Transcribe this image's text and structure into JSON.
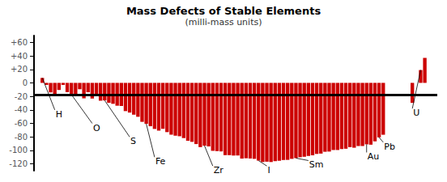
{
  "chart_data": {
    "type": "bar",
    "title": "Mass Defects of Stable Elements",
    "subtitle": "(milli-mass units)",
    "color": "#cc0000",
    "x": [
      1,
      2,
      3,
      4,
      5,
      6,
      7,
      8,
      9,
      10,
      11,
      12,
      13,
      14,
      15,
      16,
      17,
      18,
      19,
      20,
      21,
      22,
      23,
      24,
      25,
      26,
      27,
      28,
      29,
      30,
      31,
      32,
      33,
      34,
      35,
      36,
      37,
      38,
      39,
      40,
      41,
      42,
      43,
      44,
      45,
      46,
      47,
      48,
      49,
      50,
      51,
      52,
      53,
      54,
      55,
      56,
      57,
      58,
      59,
      60,
      61,
      62,
      63,
      64,
      65,
      66,
      67,
      68,
      69,
      70,
      71,
      72,
      73,
      74,
      75,
      76,
      77,
      78,
      79,
      80,
      81,
      82,
      83,
      90,
      92,
      93
    ],
    "values": [
      7.3,
      -3.0,
      -14.1,
      -19.0,
      -10.5,
      -3.0,
      -13.7,
      -17.4,
      -17.4,
      -9.4,
      -22.9,
      -13.9,
      -23.2,
      -19.1,
      -26.4,
      -26.0,
      -29.5,
      -31.0,
      -33.8,
      -34.2,
      -41.8,
      -44.0,
      -47.1,
      -50.2,
      -57.7,
      -60.6,
      -64.2,
      -68.2,
      -70.7,
      -68.0,
      -72.9,
      -76.7,
      -78.2,
      -79.0,
      -81.7,
      -85.7,
      -87.3,
      -90.6,
      -95.1,
      -93.0,
      -94.0,
      -100.6,
      -101.0,
      -101.5,
      -107.0,
      -107.0,
      -107.6,
      -107.5,
      -112.1,
      -111.6,
      -112.0,
      -112.5,
      -115.1,
      -117.2,
      -116.7,
      -117.2,
      -115.9,
      -115.3,
      -114.2,
      -114.0,
      -112.5,
      -111.4,
      -110.1,
      -109.4,
      -108.2,
      -107.2,
      -105.2,
      -104.7,
      -102.0,
      -101.7,
      -99.4,
      -99.4,
      -98.0,
      -97.5,
      -95.1,
      -96.0,
      -93.5,
      -93.5,
      -91.0,
      -91.5,
      -86.6,
      -80.7,
      -76.8,
      -29.6,
      19.0,
      37.0
    ],
    "xlim": [
      -1,
      96
    ],
    "ylim": [
      -130,
      70
    ],
    "yticks": [
      -120,
      -100,
      -80,
      -60,
      -40,
      -20,
      0,
      {
        "value": 20,
        "label": "+20"
      },
      {
        "value": 40,
        "label": "+40"
      },
      {
        "value": 60,
        "label": "+60"
      }
    ],
    "tick_labels": "y",
    "grid": false,
    "hline_y": -18,
    "annotations": [
      {
        "label": "H",
        "x": 1,
        "y": 7.3,
        "label_x": 4,
        "label_y": -40
      },
      {
        "label": "O",
        "x": 8,
        "y": -17.4,
        "label_x": 13,
        "label_y": -60
      },
      {
        "label": "S",
        "x": 16,
        "y": -26.0,
        "label_x": 22,
        "label_y": -80
      },
      {
        "label": "Fe",
        "x": 26,
        "y": -60.6,
        "label_x": 28,
        "label_y": -110
      },
      {
        "label": "Zr",
        "x": 40,
        "y": -93.0,
        "label_x": 42,
        "label_y": -123
      },
      {
        "label": "I",
        "x": 53,
        "y": -115.1,
        "label_x": 55,
        "label_y": -123
      },
      {
        "label": "Sm",
        "x": 62,
        "y": -111.4,
        "label_x": 65,
        "label_y": -115
      },
      {
        "label": "Au",
        "x": 79,
        "y": -91.0,
        "label_x": 79,
        "label_y": -103
      },
      {
        "label": "Pb",
        "x": 82,
        "y": -80.7,
        "label_x": 83,
        "label_y": -88
      },
      {
        "label": "U",
        "x": 92,
        "y": 19.0,
        "label_x": 90,
        "label_y": -38
      }
    ]
  }
}
